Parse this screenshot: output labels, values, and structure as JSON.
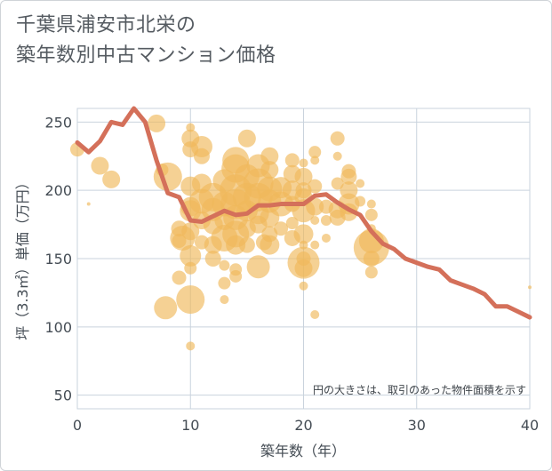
{
  "title_lines": [
    "千葉県浦安市北栄の",
    "築年数別中古マンション価格"
  ],
  "chart_data": {
    "type": "scatter",
    "xlabel": "築年数（年）",
    "ylabel": "坪（3.3㎡）単価（万円）",
    "xlim": [
      0,
      40
    ],
    "ylim": [
      40,
      260
    ],
    "xticks": [
      0,
      10,
      20,
      30,
      40
    ],
    "yticks": [
      50,
      100,
      150,
      200,
      250
    ],
    "grid": true,
    "note": "円の大きさは、取引のあった物件面積を示す",
    "colors": {
      "bubble": "#f0b85a",
      "line": "#d4705a",
      "grid": "#c9d3dd"
    },
    "scatter_points": [
      [
        0,
        230,
        8
      ],
      [
        1,
        190,
        2
      ],
      [
        2,
        218,
        10
      ],
      [
        3,
        208,
        10
      ],
      [
        7,
        249,
        10
      ],
      [
        7.5,
        215,
        7
      ],
      [
        8,
        210,
        16
      ],
      [
        9,
        172,
        9
      ],
      [
        9,
        163,
        8
      ],
      [
        9,
        136,
        8
      ],
      [
        7.8,
        114,
        13
      ],
      [
        9.3,
        165,
        14
      ],
      [
        10,
        246,
        5
      ],
      [
        10,
        238,
        10
      ],
      [
        10,
        230,
        9
      ],
      [
        10,
        203,
        11
      ],
      [
        10,
        188,
        11
      ],
      [
        10,
        185,
        12
      ],
      [
        10,
        170,
        10
      ],
      [
        10,
        152,
        12
      ],
      [
        10,
        143,
        7
      ],
      [
        10,
        120,
        16
      ],
      [
        10,
        86,
        5
      ],
      [
        11,
        232,
        12
      ],
      [
        11,
        225,
        9
      ],
      [
        11,
        205,
        11
      ],
      [
        11,
        192,
        14
      ],
      [
        11,
        178,
        10
      ],
      [
        11,
        162,
        8
      ],
      [
        12,
        195,
        16
      ],
      [
        12,
        186,
        13
      ],
      [
        12,
        175,
        11
      ],
      [
        12,
        160,
        10
      ],
      [
        12,
        150,
        9
      ],
      [
        13,
        207,
        13
      ],
      [
        13,
        190,
        14
      ],
      [
        13,
        178,
        11
      ],
      [
        13,
        165,
        15
      ],
      [
        13,
        145,
        6
      ],
      [
        13,
        132,
        7
      ],
      [
        13,
        120,
        5
      ],
      [
        14,
        222,
        15
      ],
      [
        14,
        216,
        16
      ],
      [
        14,
        200,
        18
      ],
      [
        14,
        190,
        17
      ],
      [
        14,
        180,
        14
      ],
      [
        14,
        168,
        15
      ],
      [
        14,
        160,
        11
      ],
      [
        14,
        142,
        7
      ],
      [
        14,
        137,
        7
      ],
      [
        15,
        238,
        10
      ],
      [
        15,
        210,
        14
      ],
      [
        15,
        195,
        16
      ],
      [
        15,
        185,
        12
      ],
      [
        15,
        172,
        10
      ],
      [
        15,
        160,
        9
      ],
      [
        16,
        218,
        13
      ],
      [
        16,
        205,
        17
      ],
      [
        16,
        195,
        16
      ],
      [
        16,
        183,
        12
      ],
      [
        16,
        175,
        10
      ],
      [
        16,
        144,
        13
      ],
      [
        16.5,
        162,
        9
      ],
      [
        17,
        225,
        10
      ],
      [
        17,
        215,
        10
      ],
      [
        17,
        201,
        14
      ],
      [
        17,
        192,
        13
      ],
      [
        17,
        180,
        11
      ],
      [
        17,
        168,
        9
      ],
      [
        17,
        160,
        11
      ],
      [
        18,
        202,
        12
      ],
      [
        18,
        190,
        14
      ],
      [
        18,
        172,
        8
      ],
      [
        19,
        222,
        8
      ],
      [
        19,
        212,
        10
      ],
      [
        19,
        200,
        11
      ],
      [
        19,
        190,
        9
      ],
      [
        19,
        176,
        7
      ],
      [
        19,
        165,
        9
      ],
      [
        20,
        220,
        5
      ],
      [
        20,
        210,
        10
      ],
      [
        20,
        200,
        9
      ],
      [
        20,
        195,
        10
      ],
      [
        20,
        185,
        13
      ],
      [
        20,
        168,
        11
      ],
      [
        20,
        160,
        5
      ],
      [
        20,
        150,
        8
      ],
      [
        20,
        143,
        10
      ],
      [
        20,
        147,
        18
      ],
      [
        20,
        130,
        5
      ],
      [
        21,
        228,
        7
      ],
      [
        21,
        222,
        5
      ],
      [
        21,
        203,
        8
      ],
      [
        21,
        188,
        10
      ],
      [
        21,
        178,
        5
      ],
      [
        21,
        160,
        5
      ],
      [
        21,
        109,
        5
      ],
      [
        22,
        188,
        8
      ],
      [
        22,
        178,
        6
      ],
      [
        22,
        165,
        5
      ],
      [
        23,
        238,
        8
      ],
      [
        23,
        225,
        5
      ],
      [
        23,
        205,
        7
      ],
      [
        23,
        186,
        10
      ],
      [
        23,
        180,
        9
      ],
      [
        24,
        214,
        8
      ],
      [
        24,
        210,
        9
      ],
      [
        24,
        200,
        10
      ],
      [
        24,
        190,
        12
      ],
      [
        24,
        184,
        10
      ],
      [
        25,
        205,
        5
      ],
      [
        25,
        192,
        6
      ],
      [
        26,
        190,
        5
      ],
      [
        26,
        182,
        7
      ],
      [
        26,
        172,
        5
      ],
      [
        26,
        163,
        14
      ],
      [
        26,
        158,
        20
      ],
      [
        26,
        150,
        9
      ],
      [
        26,
        140,
        7
      ],
      [
        40,
        129,
        2
      ]
    ],
    "line": {
      "x": [
        0,
        1,
        2,
        3,
        4,
        5,
        6,
        7,
        8,
        9,
        10,
        11,
        12,
        13,
        14,
        15,
        16,
        17,
        18,
        19,
        20,
        21,
        22,
        23,
        24,
        25,
        26,
        27,
        28,
        29,
        30,
        31,
        32,
        33,
        34,
        35,
        36,
        37,
        38,
        39,
        40
      ],
      "y": [
        235,
        228,
        236,
        250,
        248,
        260,
        250,
        222,
        198,
        195,
        178,
        177,
        181,
        185,
        182,
        183,
        189,
        189,
        190,
        190,
        190,
        196,
        197,
        191,
        186,
        182,
        170,
        161,
        157,
        150,
        147,
        144,
        142,
        134,
        131,
        128,
        124,
        115,
        115,
        111,
        107
      ]
    }
  }
}
